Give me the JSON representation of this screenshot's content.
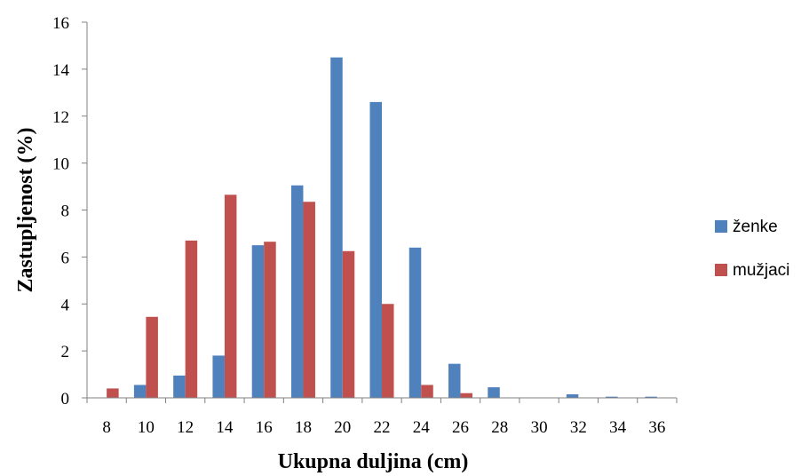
{
  "chart_data": {
    "type": "bar",
    "title": "",
    "xlabel": "Ukupna duljina (cm)",
    "ylabel": "Zastupljenost (%)",
    "categories": [
      "8",
      "10",
      "12",
      "14",
      "16",
      "18",
      "20",
      "22",
      "24",
      "26",
      "28",
      "30",
      "32",
      "34",
      "36"
    ],
    "series": [
      {
        "name": "ženke",
        "color": "#4f81bd",
        "values": [
          0,
          0.55,
          0.95,
          1.8,
          6.5,
          9.05,
          14.5,
          12.6,
          6.4,
          1.45,
          0.45,
          0,
          0.15,
          0.05,
          0.05
        ]
      },
      {
        "name": "mužjaci",
        "color": "#c0504d",
        "values": [
          0.4,
          3.45,
          6.7,
          8.65,
          6.65,
          8.35,
          6.25,
          4.0,
          0.55,
          0.2,
          0,
          0,
          0,
          0,
          0
        ]
      }
    ],
    "ylim": [
      0,
      16
    ],
    "yticks": [
      "0",
      "2",
      "4",
      "6",
      "8",
      "10",
      "12",
      "14",
      "16"
    ],
    "grid": false,
    "legend_position": "right"
  }
}
